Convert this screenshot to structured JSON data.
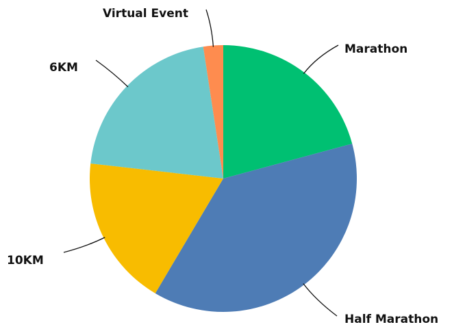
{
  "chart_data": {
    "type": "pie",
    "categories": [
      "Marathon",
      "Half Marathon",
      "10KM",
      "6KM",
      "Virtual Event"
    ],
    "values": [
      20.8,
      37.7,
      18.3,
      20.8,
      2.4
    ],
    "colors": [
      "#00c072",
      "#4e7cb5",
      "#f8bc00",
      "#6cc8cb",
      "#fe8c4f"
    ]
  }
}
